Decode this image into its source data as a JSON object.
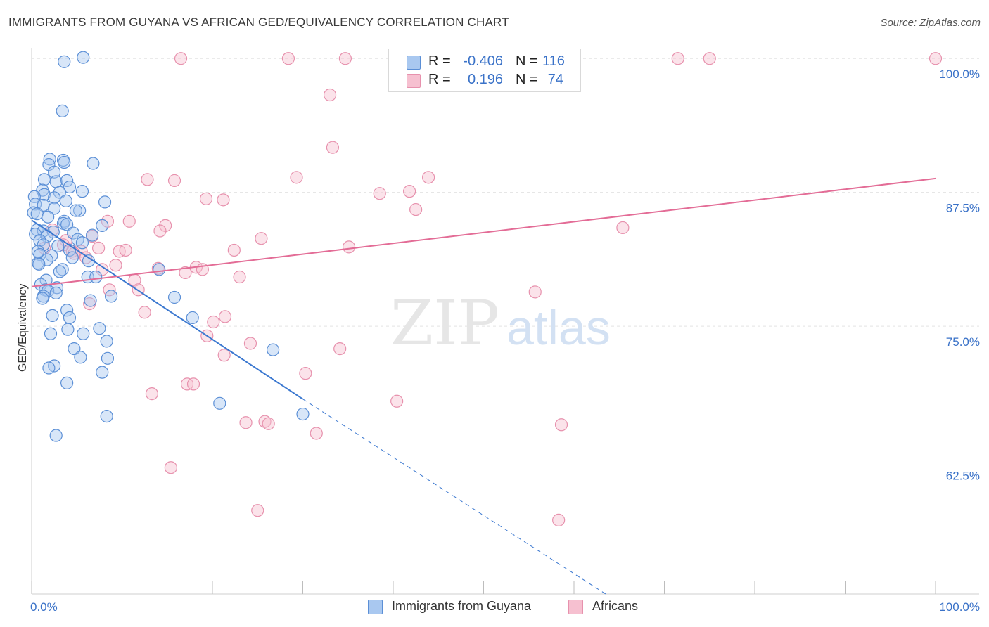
{
  "header": {
    "title": "IMMIGRANTS FROM GUYANA VS AFRICAN GED/EQUIVALENCY CORRELATION CHART",
    "source": "Source: ZipAtlas.com"
  },
  "watermark": {
    "zip": "ZIP",
    "atlas": "atlas"
  },
  "legend_top": {
    "r_label": "R =",
    "n_label": "N =",
    "rows": [
      {
        "r_value": "-0.406",
        "n_value": "116"
      },
      {
        "r_value": "0.196",
        "n_value": "74"
      }
    ]
  },
  "legend_bottom": {
    "items": [
      {
        "label": "Immigrants from Guyana"
      },
      {
        "label": "Africans"
      }
    ]
  },
  "colors": {
    "blue_fill": "#a9c8f0",
    "blue_stroke": "#5b8fd6",
    "blue_line": "#3b78d0",
    "pink_fill": "#f6c0d0",
    "pink_stroke": "#e791ad",
    "pink_line": "#e36c96",
    "axis_text": "#3a72c8",
    "grid": "#e3e3e3"
  },
  "chart_data": {
    "type": "scatter",
    "title": "IMMIGRANTS FROM GUYANA VS AFRICAN GED/EQUIVALENCY CORRELATION CHART",
    "xlabel": "",
    "ylabel": "GED/Equivalency",
    "xlim": [
      0,
      100
    ],
    "ylim": [
      50,
      101
    ],
    "x_ticks": [
      0,
      10,
      20,
      30,
      40,
      50,
      60,
      70,
      80,
      90,
      100
    ],
    "x_tick_labels": [
      {
        "value": 0,
        "label": "0.0%"
      },
      {
        "value": 100,
        "label": "100.0%"
      }
    ],
    "y_ticks": [
      {
        "value": 62.5,
        "label": "62.5%"
      },
      {
        "value": 75.0,
        "label": "75.0%"
      },
      {
        "value": 87.5,
        "label": "87.5%"
      },
      {
        "value": 100.0,
        "label": "100.0%"
      }
    ],
    "grid": true,
    "legend_position": "bottom",
    "series": [
      {
        "name": "Immigrants from Guyana",
        "r": -0.406,
        "n": 116,
        "trend": {
          "x0": 0.0,
          "y0": 84.9,
          "x1": 30.0,
          "y1": 68.2,
          "dashed_to_x": 63.5,
          "dashed_to_y": 50.0
        },
        "points": [
          [
            3.6,
            99.7
          ],
          [
            5.7,
            100.1
          ],
          [
            3.4,
            95.1
          ],
          [
            2.0,
            90.6
          ],
          [
            3.5,
            90.5
          ],
          [
            1.9,
            90.1
          ],
          [
            3.6,
            90.3
          ],
          [
            6.8,
            90.2
          ],
          [
            2.5,
            89.4
          ],
          [
            1.4,
            88.7
          ],
          [
            2.7,
            88.5
          ],
          [
            3.9,
            88.6
          ],
          [
            4.2,
            88.0
          ],
          [
            1.2,
            87.7
          ],
          [
            3.1,
            87.5
          ],
          [
            5.6,
            87.6
          ],
          [
            1.4,
            87.3
          ],
          [
            0.3,
            87.1
          ],
          [
            2.5,
            87.0
          ],
          [
            3.8,
            86.7
          ],
          [
            8.1,
            86.6
          ],
          [
            0.4,
            86.4
          ],
          [
            1.3,
            86.3
          ],
          [
            2.5,
            86.0
          ],
          [
            5.3,
            85.8
          ],
          [
            4.9,
            85.8
          ],
          [
            0.2,
            85.6
          ],
          [
            0.6,
            85.5
          ],
          [
            1.8,
            85.2
          ],
          [
            3.6,
            84.8
          ],
          [
            3.5,
            84.6
          ],
          [
            3.9,
            84.5
          ],
          [
            7.8,
            84.4
          ],
          [
            0.6,
            84.0
          ],
          [
            1.3,
            83.9
          ],
          [
            2.4,
            83.8
          ],
          [
            4.6,
            83.7
          ],
          [
            6.7,
            83.5
          ],
          [
            0.4,
            83.6
          ],
          [
            1.7,
            83.4
          ],
          [
            0.9,
            83.0
          ],
          [
            5.1,
            83.1
          ],
          [
            5.6,
            82.8
          ],
          [
            1.3,
            82.6
          ],
          [
            2.9,
            82.5
          ],
          [
            0.7,
            82.0
          ],
          [
            0.9,
            81.7
          ],
          [
            4.2,
            82.1
          ],
          [
            2.2,
            81.6
          ],
          [
            4.5,
            81.4
          ],
          [
            1.7,
            81.2
          ],
          [
            6.3,
            81.1
          ],
          [
            0.7,
            80.9
          ],
          [
            0.8,
            80.8
          ],
          [
            3.4,
            80.3
          ],
          [
            14.1,
            80.3
          ],
          [
            3.1,
            80.1
          ],
          [
            6.2,
            79.6
          ],
          [
            7.1,
            79.6
          ],
          [
            1.6,
            79.3
          ],
          [
            1.0,
            78.9
          ],
          [
            2.8,
            78.6
          ],
          [
            1.5,
            78.4
          ],
          [
            1.8,
            78.3
          ],
          [
            2.7,
            78.1
          ],
          [
            8.8,
            77.8
          ],
          [
            15.8,
            77.7
          ],
          [
            1.3,
            77.8
          ],
          [
            1.2,
            77.6
          ],
          [
            6.5,
            77.4
          ],
          [
            3.9,
            76.5
          ],
          [
            2.3,
            76.0
          ],
          [
            4.2,
            75.8
          ],
          [
            17.8,
            75.8
          ],
          [
            7.5,
            74.8
          ],
          [
            4.0,
            74.7
          ],
          [
            2.1,
            74.3
          ],
          [
            5.7,
            74.3
          ],
          [
            8.3,
            73.6
          ],
          [
            4.7,
            72.9
          ],
          [
            26.7,
            72.8
          ],
          [
            5.4,
            72.1
          ],
          [
            8.4,
            72.0
          ],
          [
            2.5,
            71.3
          ],
          [
            1.9,
            71.1
          ],
          [
            7.8,
            70.7
          ],
          [
            3.9,
            69.7
          ],
          [
            20.8,
            67.8
          ],
          [
            30.0,
            66.8
          ],
          [
            8.3,
            66.6
          ],
          [
            2.7,
            64.8
          ]
        ]
      },
      {
        "name": "Africans",
        "r": 0.196,
        "n": 74,
        "trend": {
          "x0": 0.0,
          "y0": 78.7,
          "x1": 100.0,
          "y1": 88.8
        },
        "points": [
          [
            16.5,
            100.0
          ],
          [
            28.4,
            100.0
          ],
          [
            34.7,
            100.0
          ],
          [
            52.0,
            100.0
          ],
          [
            71.5,
            100.0
          ],
          [
            75.0,
            100.0
          ],
          [
            100.0,
            100.0
          ],
          [
            33.0,
            96.6
          ],
          [
            33.3,
            91.7
          ],
          [
            29.3,
            88.9
          ],
          [
            43.9,
            88.9
          ],
          [
            12.8,
            88.7
          ],
          [
            15.8,
            88.6
          ],
          [
            38.5,
            87.4
          ],
          [
            41.8,
            87.6
          ],
          [
            19.3,
            86.9
          ],
          [
            21.2,
            86.8
          ],
          [
            42.5,
            85.9
          ],
          [
            8.4,
            84.8
          ],
          [
            10.8,
            84.8
          ],
          [
            14.8,
            84.4
          ],
          [
            14.2,
            83.9
          ],
          [
            65.4,
            84.2
          ],
          [
            2.3,
            84.0
          ],
          [
            25.4,
            83.2
          ],
          [
            6.7,
            83.4
          ],
          [
            3.8,
            83.0
          ],
          [
            3.5,
            82.6
          ],
          [
            35.1,
            82.4
          ],
          [
            7.4,
            82.3
          ],
          [
            22.4,
            82.1
          ],
          [
            9.7,
            82.0
          ],
          [
            10.4,
            82.1
          ],
          [
            4.5,
            82.0
          ],
          [
            1.4,
            82.3
          ],
          [
            5.5,
            82.0
          ],
          [
            4.7,
            81.8
          ],
          [
            6.0,
            81.4
          ],
          [
            9.3,
            80.7
          ],
          [
            7.8,
            80.3
          ],
          [
            14.0,
            80.4
          ],
          [
            18.2,
            80.5
          ],
          [
            18.9,
            80.3
          ],
          [
            17.0,
            80.0
          ],
          [
            23.0,
            79.6
          ],
          [
            11.4,
            79.3
          ],
          [
            8.6,
            78.4
          ],
          [
            11.8,
            78.4
          ],
          [
            55.7,
            78.2
          ],
          [
            6.4,
            77.1
          ],
          [
            12.5,
            76.3
          ],
          [
            21.4,
            75.9
          ],
          [
            20.1,
            75.4
          ],
          [
            19.4,
            74.1
          ],
          [
            24.2,
            73.4
          ],
          [
            34.1,
            72.9
          ],
          [
            21.3,
            72.3
          ],
          [
            30.3,
            70.6
          ],
          [
            17.2,
            69.6
          ],
          [
            17.9,
            69.6
          ],
          [
            13.3,
            68.7
          ],
          [
            40.4,
            68.0
          ],
          [
            23.7,
            66.0
          ],
          [
            25.8,
            66.1
          ],
          [
            26.2,
            65.9
          ],
          [
            58.6,
            65.8
          ],
          [
            31.5,
            65.0
          ],
          [
            15.4,
            61.8
          ],
          [
            25.0,
            57.8
          ],
          [
            58.3,
            56.9
          ]
        ]
      }
    ]
  }
}
